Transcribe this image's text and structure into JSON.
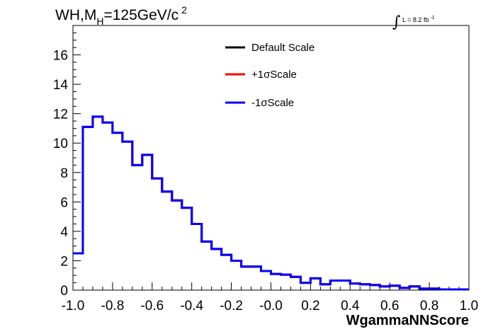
{
  "chart_data": {
    "type": "line",
    "style": "step-histogram",
    "title": {
      "main": "WH,M",
      "subscript": "H",
      "after": "=125GeV/c",
      "superscript": "2"
    },
    "lumi": {
      "text": "L = 8.2 fb",
      "superscript": "-1"
    },
    "xlabel": "WgammaNNScore",
    "ylabel": "",
    "xlim": [
      -1.0,
      1.0
    ],
    "ylim": [
      0,
      18
    ],
    "x_ticks": [
      "-1.0",
      "-0.8",
      "-0.6",
      "-0.4",
      "-0.2",
      "-0.0",
      "0.2",
      "0.4",
      "0.6",
      "0.8",
      "1.0"
    ],
    "y_ticks": [
      "0",
      "2",
      "4",
      "6",
      "8",
      "10",
      "12",
      "14",
      "16"
    ],
    "bin_edges_start": -1.0,
    "bin_width": 0.05,
    "legend_placement": "top-center",
    "legend": [
      {
        "name": "Default Scale",
        "color": "#000000"
      },
      {
        "name": "+1σScale",
        "color": "#ff0000"
      },
      {
        "name": "-1σScale",
        "color": "#0000ff"
      }
    ],
    "series": [
      {
        "name": "Default Scale",
        "color": "#000000",
        "values": [
          2.5,
          11.1,
          11.8,
          11.4,
          10.7,
          10.1,
          8.5,
          9.2,
          7.6,
          6.7,
          6.1,
          5.6,
          4.5,
          3.3,
          2.8,
          2.4,
          2.0,
          1.6,
          1.6,
          1.3,
          1.1,
          1.05,
          0.9,
          0.5,
          0.8,
          0.4,
          0.65,
          0.65,
          0.45,
          0.4,
          0.35,
          0.25,
          0.3,
          0.15,
          0.25,
          0.1,
          0.1,
          0.05,
          0.05,
          0.05
        ]
      },
      {
        "name": "+1σScale",
        "color": "#ff0000",
        "values": [
          2.5,
          11.1,
          11.8,
          11.4,
          10.7,
          10.1,
          8.5,
          9.2,
          7.6,
          6.7,
          6.1,
          5.6,
          4.5,
          3.3,
          2.8,
          2.4,
          2.0,
          1.6,
          1.6,
          1.3,
          1.1,
          1.05,
          0.9,
          0.5,
          0.8,
          0.4,
          0.65,
          0.65,
          0.45,
          0.4,
          0.35,
          0.25,
          0.3,
          0.15,
          0.25,
          0.1,
          0.1,
          0.05,
          0.05,
          0.05
        ]
      },
      {
        "name": "-1σScale",
        "color": "#0000ff",
        "values": [
          2.5,
          11.1,
          11.8,
          11.4,
          10.7,
          10.1,
          8.5,
          9.2,
          7.6,
          6.7,
          6.1,
          5.6,
          4.5,
          3.3,
          2.8,
          2.4,
          2.0,
          1.6,
          1.6,
          1.3,
          1.1,
          1.05,
          0.9,
          0.5,
          0.8,
          0.4,
          0.65,
          0.65,
          0.45,
          0.4,
          0.35,
          0.25,
          0.3,
          0.15,
          0.25,
          0.1,
          0.1,
          0.05,
          0.05,
          0.05
        ]
      }
    ]
  }
}
